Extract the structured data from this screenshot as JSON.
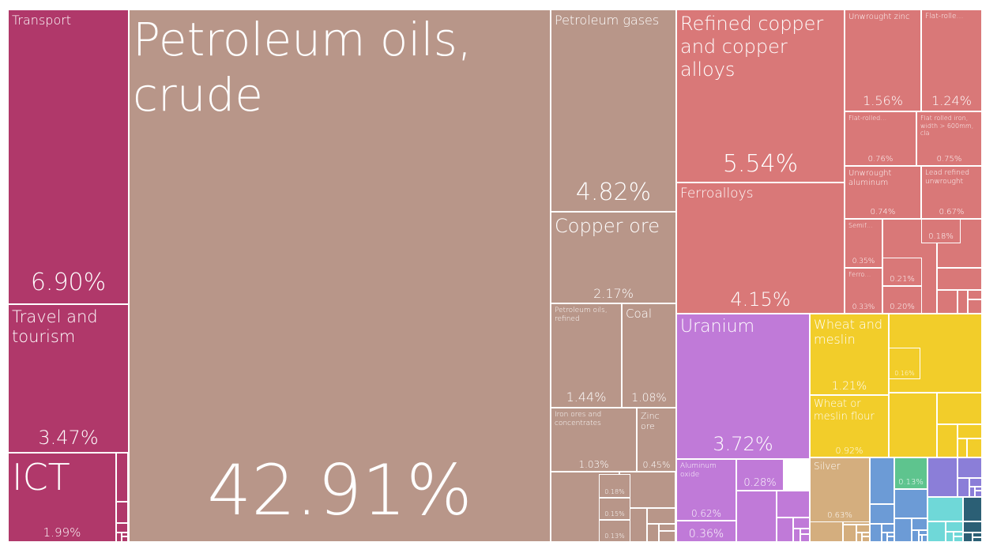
{
  "chart_data": {
    "type": "treemap",
    "categories": [
      "Transport",
      "Travel and tourism",
      "ICT",
      "Petroleum oils, crude",
      "Petroleum gases",
      "Copper ore",
      "Petroleum oils, refined",
      "Coal",
      "Iron ores and concentrates",
      "Zinc ore",
      null,
      null,
      null,
      "Refined copper and copper alloys",
      "Ferroalloys",
      "Unwrought zinc",
      "Flat-rolle…",
      "Flat-rolled…",
      "Flat rolled iron, width > 600mm, cla",
      "Unwrought aluminum",
      "Lead refined unwrought",
      "Semif…",
      null,
      "Ferro…",
      null,
      null,
      "Uranium",
      "Aluminum oxide",
      null,
      null,
      "Wheat and meslin",
      "Wheat or meslin flour",
      null,
      "Silver",
      null
    ],
    "values": [
      6.9,
      3.47,
      1.99,
      42.91,
      4.82,
      2.17,
      1.44,
      1.08,
      1.03,
      0.45,
      0.18,
      0.15,
      0.13,
      5.54,
      4.15,
      1.56,
      1.24,
      0.76,
      0.75,
      0.74,
      0.67,
      0.35,
      0.18,
      0.33,
      0.21,
      0.2,
      3.72,
      0.62,
      0.28,
      0.36,
      1.21,
      0.92,
      0.16,
      0.63,
      0.13
    ],
    "value_labels": [
      "6.90%",
      "3.47%",
      "1.99%",
      "42.91%",
      "4.82%",
      "2.17%",
      "1.44%",
      "1.08%",
      "1.03%",
      "0.45%",
      "0.18%",
      "0.15%",
      "0.13%",
      "5.54%",
      "4.15%",
      "1.56%",
      "1.24%",
      "0.76%",
      "0.75%",
      "0.74%",
      "0.67%",
      "0.35%",
      "0.18%",
      "0.33%",
      "0.21%",
      "0.20%",
      "3.72%",
      "0.62%",
      "0.28%",
      "0.36%",
      "1.21%",
      "0.92%",
      "0.16%",
      "0.63%",
      "0.13%"
    ],
    "colors": [
      "#b0386a",
      "#b0386a",
      "#b0386a",
      "#b89689",
      "#b89689",
      "#b89689",
      "#b89689",
      "#b89689",
      "#b89689",
      "#b89689",
      "#b89689",
      "#b89689",
      "#b89689",
      "#d97878",
      "#d97878",
      "#d97878",
      "#d97878",
      "#d97878",
      "#d97878",
      "#d97878",
      "#d97878",
      "#d97878",
      "#d97878",
      "#d97878",
      "#d97878",
      "#d97878",
      "#c07ad8",
      "#c07ad8",
      "#c07ad8",
      "#c07ad8",
      "#f2cd2a",
      "#f2cd2a",
      "#f2cd2a",
      "#d4ae7e",
      "#5ec48e"
    ]
  }
}
